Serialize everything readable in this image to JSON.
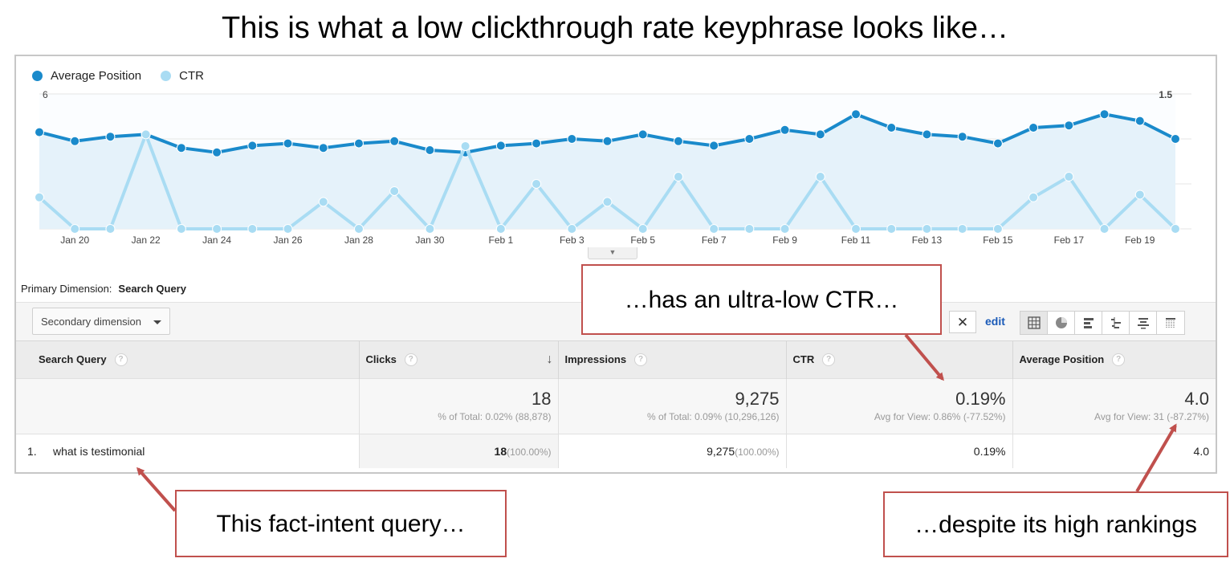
{
  "headline": "This is what a low clickthrough rate keyphrase looks like…",
  "legend": [
    {
      "label": "Average Position",
      "color": "#1a8acb"
    },
    {
      "label": "CTR",
      "color": "#a9dcf3"
    }
  ],
  "chart_data": {
    "type": "line",
    "x": [
      "Jan 19",
      "Jan 20",
      "Jan 21",
      "Jan 22",
      "Jan 23",
      "Jan 24",
      "Jan 25",
      "Jan 26",
      "Jan 27",
      "Jan 28",
      "Jan 29",
      "Jan 30",
      "Jan 31",
      "Feb 1",
      "Feb 2",
      "Feb 3",
      "Feb 4",
      "Feb 5",
      "Feb 6",
      "Feb 7",
      "Feb 8",
      "Feb 9",
      "Feb 10",
      "Feb 11",
      "Feb 12",
      "Feb 13",
      "Feb 14",
      "Feb 15",
      "Feb 16",
      "Feb 17",
      "Feb 18",
      "Feb 19",
      "Feb 20"
    ],
    "x_tick_labels": [
      "Jan 20",
      "Jan 22",
      "Jan 24",
      "Jan 26",
      "Jan 28",
      "Jan 30",
      "Feb 1",
      "Feb 3",
      "Feb 5",
      "Feb 7",
      "Feb 9",
      "Feb 11",
      "Feb 13",
      "Feb 15",
      "Feb 17",
      "Feb 19"
    ],
    "series": [
      {
        "name": "Average Position",
        "axis": "left",
        "color": "#1a8acb",
        "values": [
          4.3,
          3.9,
          4.1,
          4.2,
          3.6,
          3.4,
          3.7,
          3.8,
          3.6,
          3.8,
          3.9,
          3.5,
          3.4,
          3.7,
          3.8,
          4.0,
          3.9,
          4.2,
          3.9,
          3.7,
          4.0,
          4.4,
          4.2,
          5.1,
          4.5,
          4.2,
          4.1,
          3.8,
          4.5,
          4.6,
          5.1,
          4.8,
          4.0
        ]
      },
      {
        "name": "CTR",
        "axis": "right",
        "color": "#a9dcf3",
        "values": [
          0.35,
          0.0,
          0.0,
          1.05,
          0.0,
          0.0,
          0.0,
          0.0,
          0.3,
          0.0,
          0.42,
          0.0,
          0.92,
          0.0,
          0.5,
          0.0,
          0.3,
          0.0,
          0.58,
          0.0,
          0.0,
          0.0,
          0.58,
          0.0,
          0.0,
          0.0,
          0.0,
          0.0,
          0.35,
          0.58,
          0.0,
          0.38,
          0.0
        ]
      }
    ],
    "y_left": {
      "ticks": [
        "2",
        "4",
        "6"
      ],
      "ylim": [
        0,
        6
      ]
    },
    "y_right": {
      "ticks": [
        "0.5",
        "1.0",
        "1.5"
      ],
      "ylim": [
        0,
        1.5
      ]
    },
    "grid": true,
    "legend_position": "top-left"
  },
  "primary_dimension": {
    "label": "Primary Dimension:",
    "value": "Search Query"
  },
  "secondary_dimension": {
    "label": "Secondary dimension"
  },
  "toolbar": {
    "clear": "✕",
    "edit": "edit"
  },
  "table": {
    "headers": [
      "Search Query",
      "Clicks",
      "Impressions",
      "CTR",
      "Average Position"
    ],
    "help": "?",
    "sort_arrow": "↓",
    "totals": {
      "clicks": {
        "value": "18",
        "sub": "% of Total: 0.02% (88,878)"
      },
      "impressions": {
        "value": "9,275",
        "sub": "% of Total: 0.09% (10,296,126)"
      },
      "ctr": {
        "value": "0.19%",
        "sub": "Avg for View: 0.86% (-77.52%)"
      },
      "avg_position": {
        "value": "4.0",
        "sub": "Avg for View: 31 (-87.27%)"
      }
    },
    "rows": [
      {
        "num": "1.",
        "query": "what is testimonial",
        "clicks": "18",
        "clicks_pct": "(100.00%)",
        "impressions": "9,275",
        "impressions_pct": "(100.00%)",
        "ctr": "0.19%",
        "avg_position": "4.0"
      }
    ]
  },
  "callouts": {
    "ctr": "…has an ultra-low CTR…",
    "query": "This fact-intent query…",
    "rank": "…despite its high rankings"
  },
  "callout_color": "#c0504d"
}
